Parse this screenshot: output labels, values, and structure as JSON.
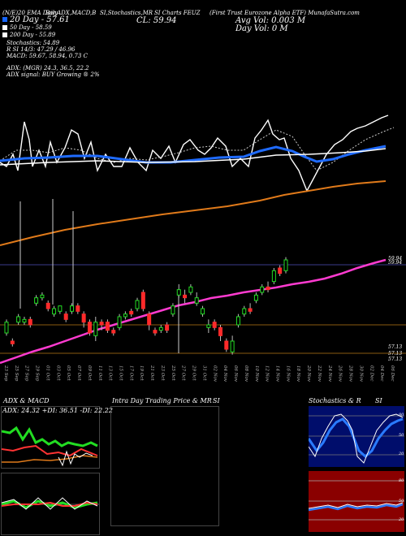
{
  "header": {
    "tag1": "(N/E)20 EMA Daily",
    "tag2": "Bar,ADX,MACD,B",
    "tag3": "SI,Stochastics,MR",
    "tag4": "SI Charts FEUZ",
    "title": "(First Trust Eurozone Alpha ETF) MunafaSutra.com",
    "cl": "CL: 59.94",
    "avg_vol": "Avg Vol: 0.003  M",
    "day_vol": "Day Vol: 0   M"
  },
  "legend": [
    {
      "label": "20  Day - 57.61",
      "color": "#1565ff"
    },
    {
      "label": "50  Day - 58.59",
      "color": "#ffffff"
    },
    {
      "label": "200  Day - 55.89",
      "color": "#ffffff"
    }
  ],
  "stats": {
    "stoch": "Stochastics: 54.89",
    "r": "R                 SI 14/3: 47.29 / 46.96",
    "macd": "MACD: 59.67, 58.94, 0.73 C",
    "adx": "ADX:                           (MGR) 24.3,  36.5,  22.2",
    "adx_signal": "ADX   signal:                                         BUY Growing ® 2%"
  },
  "right_levels": [
    "59.94",
    "59.94",
    "57.13",
    "57.13",
    "57.13"
  ],
  "x_labels": [
    "23 Sep",
    "25 Sep",
    "27 Sep",
    "29 Sep",
    "01 Oct",
    "03 Oct",
    "05 Oct",
    "07 Oct",
    "09 Oct",
    "11 Oct",
    "13 Oct",
    "15 Oct",
    "17 Oct",
    "19 Oct",
    "21 Oct",
    "23 Oct",
    "25 Oct",
    "27 Oct",
    "29 Oct",
    "31 Oct",
    "02 Nov",
    "04 Nov",
    "06 Nov",
    "08 Nov",
    "10 Nov",
    "12 Nov",
    "14 Nov",
    "16 Nov",
    "18 Nov",
    "20 Nov",
    "22 Nov",
    "24 Nov",
    "26 Nov",
    "28 Nov",
    "30 Nov",
    "02 Dec",
    "04 Dec",
    "06 Dec"
  ],
  "panels": {
    "adx_title": "ADX  & MACD",
    "adx_stats": "ADX: 24.32  +DI: 36.51  -DI: 22.22",
    "intra_title": "Intra  Day Trading Price  & MR",
    "intra_si": "SI",
    "stoch_title": "Stochastics & R",
    "stoch_si": "SI",
    "stoch_levels": [
      "80",
      "50",
      "20"
    ],
    "rsi_levels": [
      "80",
      "50",
      "20"
    ]
  },
  "chart_data": {
    "type": "candlestick",
    "symbol": "FEUZ",
    "candles": [
      {
        "o": 56.9,
        "c": 57.3,
        "h": 57.4,
        "l": 56.8,
        "up": true
      },
      {
        "o": 56.6,
        "c": 56.5,
        "h": 56.7,
        "l": 56.4,
        "up": false
      },
      {
        "o": 57.3,
        "c": 57.5,
        "h": 57.6,
        "l": 57.2,
        "up": true
      },
      {
        "o": 57.3,
        "c": 57.4,
        "h": 57.5,
        "l": 57.2,
        "up": true
      },
      {
        "o": 57.4,
        "c": 57.2,
        "h": 57.5,
        "l": 57.1,
        "up": false
      },
      {
        "o": 58.0,
        "c": 58.2,
        "h": 58.3,
        "l": 57.9,
        "up": true
      },
      {
        "o": 58.2,
        "c": 58.3,
        "h": 58.4,
        "l": 58.1,
        "up": true
      },
      {
        "o": 58.0,
        "c": 57.8,
        "h": 58.1,
        "l": 57.7,
        "up": false
      },
      {
        "o": 57.6,
        "c": 57.8,
        "h": 57.9,
        "l": 57.5,
        "up": true
      },
      {
        "o": 57.7,
        "c": 57.9,
        "h": 57.9,
        "l": 57.6,
        "up": true
      },
      {
        "o": 57.6,
        "c": 57.4,
        "h": 57.7,
        "l": 57.3,
        "up": false
      },
      {
        "o": 57.7,
        "c": 57.9,
        "h": 58.0,
        "l": 57.6,
        "up": true
      },
      {
        "o": 57.9,
        "c": 57.7,
        "h": 58.0,
        "l": 57.6,
        "up": false
      },
      {
        "o": 57.6,
        "c": 57.3,
        "h": 57.7,
        "l": 57.1,
        "up": false
      },
      {
        "o": 57.3,
        "c": 56.9,
        "h": 57.4,
        "l": 56.8,
        "up": false
      },
      {
        "o": 56.8,
        "c": 57.3,
        "h": 57.5,
        "l": 56.6,
        "up": true
      },
      {
        "o": 57.3,
        "c": 57.2,
        "h": 57.4,
        "l": 57.0,
        "up": false
      },
      {
        "o": 57.3,
        "c": 57.0,
        "h": 57.4,
        "l": 56.9,
        "up": false
      },
      {
        "o": 57.0,
        "c": 56.9,
        "h": 57.1,
        "l": 56.8,
        "up": false
      },
      {
        "o": 57.1,
        "c": 57.5,
        "h": 57.6,
        "l": 57.0,
        "up": true
      },
      {
        "o": 57.5,
        "c": 57.6,
        "h": 57.7,
        "l": 57.4,
        "up": true
      },
      {
        "o": 57.7,
        "c": 57.6,
        "h": 57.8,
        "l": 57.5,
        "up": false
      },
      {
        "o": 57.8,
        "c": 58.1,
        "h": 58.2,
        "l": 57.7,
        "up": true
      },
      {
        "o": 58.4,
        "c": 57.8,
        "h": 58.5,
        "l": 57.7,
        "up": false
      },
      {
        "o": 57.6,
        "c": 57.2,
        "h": 57.7,
        "l": 57.0,
        "up": false
      },
      {
        "o": 57.0,
        "c": 56.9,
        "h": 57.1,
        "l": 56.8,
        "up": false
      },
      {
        "o": 57.0,
        "c": 57.1,
        "h": 57.2,
        "l": 56.9,
        "up": true
      },
      {
        "o": 57.2,
        "c": 57.0,
        "h": 57.3,
        "l": 56.9,
        "up": false
      },
      {
        "o": 57.6,
        "c": 57.9,
        "h": 58.0,
        "l": 57.5,
        "up": true
      },
      {
        "o": 58.3,
        "c": 58.5,
        "h": 58.7,
        "l": 58.2,
        "up": true
      },
      {
        "o": 58.3,
        "c": 58.2,
        "h": 58.5,
        "l": 58.0,
        "up": false
      },
      {
        "o": 58.4,
        "c": 58.6,
        "h": 58.7,
        "l": 58.3,
        "up": true
      },
      {
        "o": 58.0,
        "c": 58.2,
        "h": 58.4,
        "l": 57.9,
        "up": true
      },
      {
        "o": 57.6,
        "c": 57.8,
        "h": 57.9,
        "l": 57.5,
        "up": true
      },
      {
        "o": 57.1,
        "c": 57.2,
        "h": 57.4,
        "l": 56.9,
        "up": true
      },
      {
        "o": 57.3,
        "c": 57.1,
        "h": 57.4,
        "l": 57.0,
        "up": false
      },
      {
        "o": 57.1,
        "c": 56.8,
        "h": 57.2,
        "l": 56.6,
        "up": false
      },
      {
        "o": 56.6,
        "c": 56.3,
        "h": 56.7,
        "l": 56.2,
        "up": false
      },
      {
        "o": 56.2,
        "c": 56.6,
        "h": 56.8,
        "l": 56.1,
        "up": true
      },
      {
        "o": 57.2,
        "c": 57.5,
        "h": 57.6,
        "l": 57.1,
        "up": true
      },
      {
        "o": 57.6,
        "c": 57.8,
        "h": 57.9,
        "l": 57.5,
        "up": true
      },
      {
        "o": 57.8,
        "c": 57.7,
        "h": 58.0,
        "l": 57.6,
        "up": false
      },
      {
        "o": 58.1,
        "c": 58.3,
        "h": 58.4,
        "l": 58.0,
        "up": true
      },
      {
        "o": 58.4,
        "c": 58.6,
        "h": 58.7,
        "l": 58.3,
        "up": true
      },
      {
        "o": 58.6,
        "c": 58.5,
        "h": 58.8,
        "l": 58.4,
        "up": false
      },
      {
        "o": 58.8,
        "c": 59.2,
        "h": 59.3,
        "l": 58.7,
        "up": true
      },
      {
        "o": 59.3,
        "c": 59.1,
        "h": 59.4,
        "l": 59.0,
        "up": false
      },
      {
        "o": 59.2,
        "c": 59.6,
        "h": 59.7,
        "l": 59.1,
        "up": true
      }
    ]
  }
}
